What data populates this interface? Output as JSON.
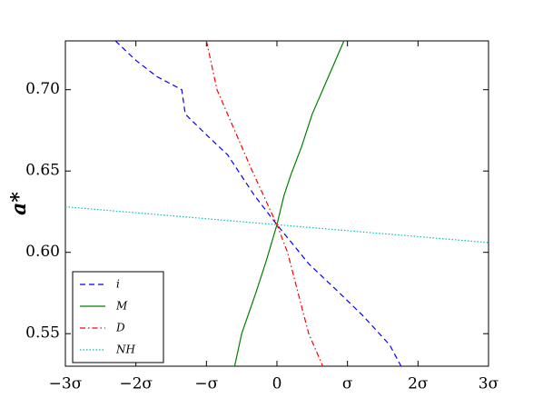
{
  "chart_data": {
    "type": "line",
    "ylabel": "a*",
    "xlim": [
      -3,
      3
    ],
    "ylim": [
      0.53,
      0.73
    ],
    "xticks": [
      {
        "value": -3,
        "label": "−3σ"
      },
      {
        "value": -2,
        "label": "−2σ"
      },
      {
        "value": -1,
        "label": "−σ"
      },
      0,
      {
        "value": 1,
        "label": "σ"
      },
      {
        "value": 2,
        "label": "2σ"
      },
      {
        "value": 3,
        "label": "3σ"
      }
    ],
    "yticks": [
      0.55,
      {
        "value": 0.6,
        "label": "0.60"
      },
      0.65,
      {
        "value": 0.7,
        "label": "0.70"
      }
    ],
    "legend": "lower left",
    "series": [
      {
        "name": "i",
        "color": "#0000ff",
        "dash": "6 4",
        "x": [
          -2.29,
          -2.0,
          -1.7,
          -1.35,
          -1.3,
          -0.97,
          -0.7,
          -0.32,
          0,
          0.45,
          0.84,
          1.22,
          1.6,
          1.76
        ],
        "values": [
          0.73,
          0.718,
          0.708,
          0.7,
          0.685,
          0.671,
          0.66,
          0.635,
          0.617,
          0.593,
          0.577,
          0.561,
          0.543,
          0.53
        ]
      },
      {
        "name": "M",
        "color": "#008000",
        "dash": "none",
        "x": [
          -0.6,
          -0.5,
          -0.3,
          -0.15,
          0,
          0.1,
          0.2,
          0.35,
          0.5,
          0.7,
          0.95
        ],
        "values": [
          0.53,
          0.55,
          0.575,
          0.595,
          0.617,
          0.635,
          0.648,
          0.665,
          0.685,
          0.705,
          0.73
        ]
      },
      {
        "name": "D",
        "color": "#ff0000",
        "dash": "6 3 1.5 3",
        "x": [
          -1.0,
          -0.85,
          -0.6,
          -0.35,
          0,
          0.15,
          0.3,
          0.45,
          0.65
        ],
        "values": [
          0.73,
          0.7,
          0.675,
          0.65,
          0.617,
          0.6,
          0.575,
          0.55,
          0.53
        ]
      },
      {
        "name": "NH",
        "color": "#00bfbf",
        "dash": "1.5 2",
        "x": [
          -3,
          -1.5,
          0,
          1.5,
          3
        ],
        "values": [
          0.628,
          0.6225,
          0.617,
          0.6115,
          0.606
        ]
      }
    ]
  }
}
